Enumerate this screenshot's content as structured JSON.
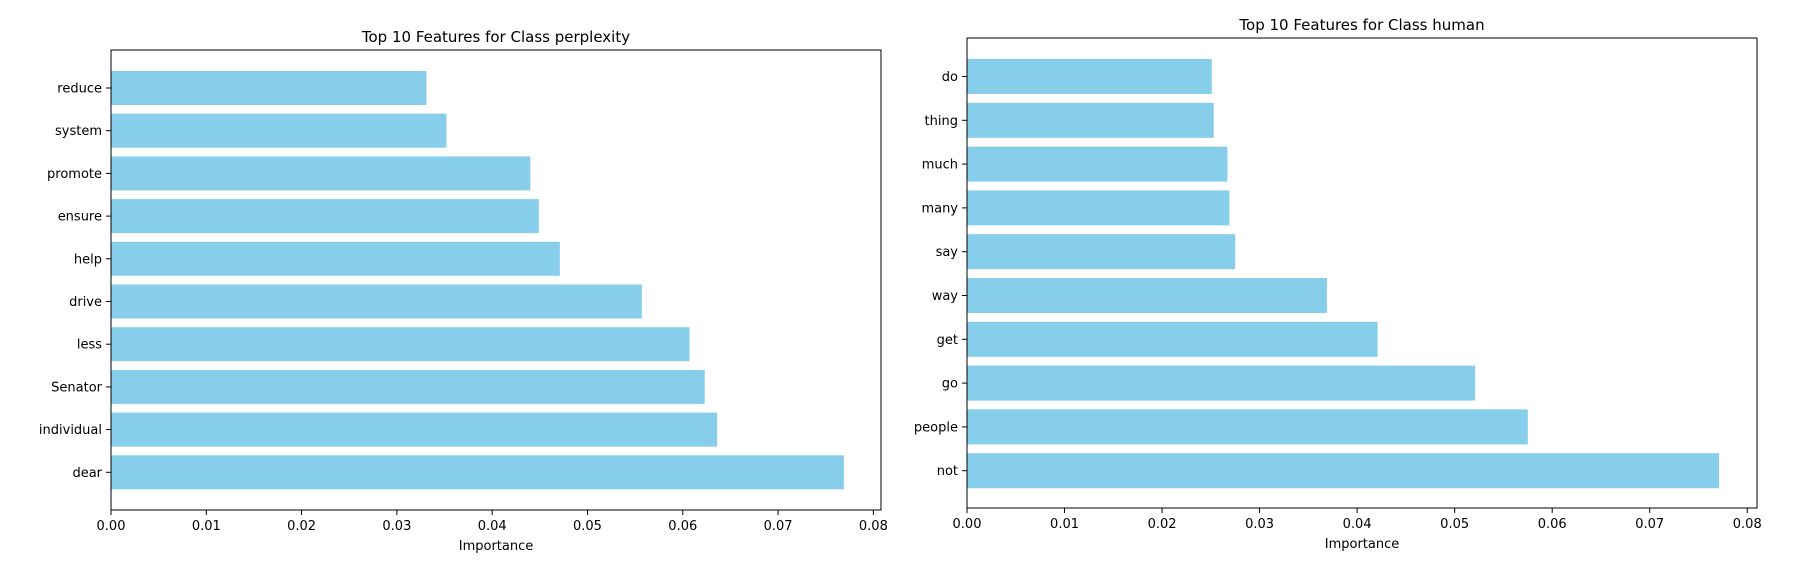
{
  "chart_data": [
    {
      "type": "bar",
      "orientation": "horizontal",
      "title": "Top 10 Features for Class perplexity",
      "xlabel": "Importance",
      "ylabel": "",
      "categories": [
        "reduce",
        "system",
        "promote",
        "ensure",
        "help",
        "drive",
        "less",
        "Senator",
        "individual",
        "dear"
      ],
      "values": [
        0.0331,
        0.0352,
        0.044,
        0.0449,
        0.0471,
        0.0557,
        0.0607,
        0.0623,
        0.0636,
        0.0769
      ],
      "xlim": [
        0,
        0.0808
      ],
      "xticks": [
        "0.00",
        "0.01",
        "0.02",
        "0.03",
        "0.04",
        "0.05",
        "0.06",
        "0.07",
        "0.08"
      ],
      "bar_color": "#87CEEB",
      "grid": false,
      "legend": "none"
    },
    {
      "type": "bar",
      "orientation": "horizontal",
      "title": "Top 10 Features for Class human",
      "xlabel": "Importance",
      "ylabel": "",
      "categories": [
        "do",
        "thing",
        "much",
        "many",
        "say",
        "way",
        "get",
        "go",
        "people",
        "not"
      ],
      "values": [
        0.0251,
        0.0253,
        0.0267,
        0.0269,
        0.0275,
        0.0369,
        0.0421,
        0.0521,
        0.0575,
        0.0771
      ],
      "xlim": [
        0,
        0.081
      ],
      "xticks": [
        "0.00",
        "0.01",
        "0.02",
        "0.03",
        "0.04",
        "0.05",
        "0.06",
        "0.07",
        "0.08"
      ],
      "bar_color": "#87CEEB",
      "grid": false,
      "legend": "none"
    }
  ]
}
